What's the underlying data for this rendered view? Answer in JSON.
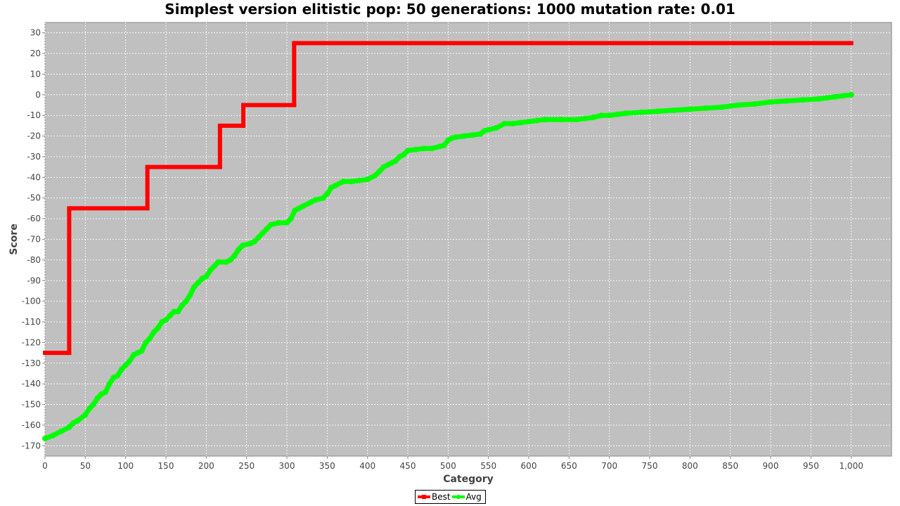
{
  "chart_data": {
    "type": "line",
    "title": "Simplest version elitistic pop: 50 generations: 1000 mutation rate: 0.01",
    "xlabel": "Category",
    "ylabel": "Score",
    "xlim": [
      0,
      1050
    ],
    "ylim": [
      -175,
      35
    ],
    "xticks": [
      0,
      50,
      100,
      150,
      200,
      250,
      300,
      350,
      400,
      450,
      500,
      550,
      600,
      650,
      700,
      750,
      800,
      850,
      900,
      950,
      1000
    ],
    "xtick_labels": [
      "0",
      "50",
      "100",
      "150",
      "200",
      "250",
      "300",
      "350",
      "400",
      "450",
      "500",
      "550",
      "600",
      "650",
      "700",
      "750",
      "800",
      "850",
      "900",
      "950",
      "1,000"
    ],
    "yticks": [
      -170,
      -160,
      -150,
      -140,
      -130,
      -120,
      -110,
      -100,
      -90,
      -80,
      -70,
      -60,
      -50,
      -40,
      -30,
      -20,
      -10,
      0,
      10,
      20,
      30
    ],
    "grid": true,
    "legend_position": "bottom-center",
    "series": [
      {
        "name": "Best",
        "color": "#ff0000",
        "step": true,
        "points": [
          [
            0,
            -125
          ],
          [
            30,
            -125
          ],
          [
            30,
            -55
          ],
          [
            127,
            -55
          ],
          [
            127,
            -35
          ],
          [
            217,
            -35
          ],
          [
            217,
            -15
          ],
          [
            246,
            -15
          ],
          [
            246,
            -5
          ],
          [
            309,
            -5
          ],
          [
            309,
            25
          ],
          [
            1000,
            25
          ]
        ]
      },
      {
        "name": "Avg",
        "color": "#00ff00",
        "points": [
          [
            0,
            -166.5
          ],
          [
            10,
            -165
          ],
          [
            20,
            -163
          ],
          [
            30,
            -161
          ],
          [
            35,
            -159
          ],
          [
            40,
            -158
          ],
          [
            50,
            -155
          ],
          [
            55,
            -152
          ],
          [
            60,
            -150
          ],
          [
            65,
            -147
          ],
          [
            70,
            -145
          ],
          [
            75,
            -144
          ],
          [
            80,
            -140
          ],
          [
            85,
            -137
          ],
          [
            90,
            -136
          ],
          [
            95,
            -133
          ],
          [
            100,
            -131
          ],
          [
            105,
            -129
          ],
          [
            110,
            -126
          ],
          [
            115,
            -125
          ],
          [
            120,
            -124
          ],
          [
            125,
            -120
          ],
          [
            130,
            -118
          ],
          [
            135,
            -115
          ],
          [
            140,
            -113
          ],
          [
            145,
            -110
          ],
          [
            150,
            -109
          ],
          [
            155,
            -107
          ],
          [
            160,
            -105
          ],
          [
            165,
            -105
          ],
          [
            170,
            -102
          ],
          [
            175,
            -100
          ],
          [
            180,
            -97
          ],
          [
            185,
            -93
          ],
          [
            190,
            -91
          ],
          [
            195,
            -89
          ],
          [
            200,
            -88
          ],
          [
            205,
            -85
          ],
          [
            210,
            -83
          ],
          [
            215,
            -81
          ],
          [
            225,
            -81
          ],
          [
            230,
            -80
          ],
          [
            235,
            -78
          ],
          [
            240,
            -75
          ],
          [
            245,
            -73
          ],
          [
            255,
            -72
          ],
          [
            260,
            -71
          ],
          [
            265,
            -69
          ],
          [
            270,
            -67
          ],
          [
            275,
            -65
          ],
          [
            280,
            -63
          ],
          [
            290,
            -62
          ],
          [
            300,
            -62
          ],
          [
            305,
            -60
          ],
          [
            310,
            -56
          ],
          [
            315,
            -55
          ],
          [
            320,
            -54
          ],
          [
            330,
            -52
          ],
          [
            335,
            -51
          ],
          [
            345,
            -50
          ],
          [
            350,
            -48
          ],
          [
            355,
            -45
          ],
          [
            360,
            -44
          ],
          [
            370,
            -42
          ],
          [
            380,
            -42
          ],
          [
            390,
            -41.5
          ],
          [
            400,
            -41
          ],
          [
            410,
            -39
          ],
          [
            415,
            -37
          ],
          [
            420,
            -35
          ],
          [
            425,
            -34
          ],
          [
            430,
            -33
          ],
          [
            435,
            -32
          ],
          [
            440,
            -30
          ],
          [
            445,
            -29
          ],
          [
            450,
            -27
          ],
          [
            460,
            -26.5
          ],
          [
            470,
            -26
          ],
          [
            480,
            -26
          ],
          [
            490,
            -25
          ],
          [
            495,
            -24.5
          ],
          [
            500,
            -22
          ],
          [
            505,
            -21
          ],
          [
            510,
            -20.5
          ],
          [
            520,
            -20
          ],
          [
            530,
            -19.5
          ],
          [
            540,
            -19
          ],
          [
            545,
            -17.5
          ],
          [
            550,
            -17
          ],
          [
            560,
            -16
          ],
          [
            570,
            -14
          ],
          [
            580,
            -14
          ],
          [
            590,
            -13.5
          ],
          [
            600,
            -13
          ],
          [
            610,
            -12.5
          ],
          [
            620,
            -12
          ],
          [
            640,
            -12
          ],
          [
            660,
            -12
          ],
          [
            670,
            -11.5
          ],
          [
            680,
            -11
          ],
          [
            690,
            -10
          ],
          [
            700,
            -10
          ],
          [
            710,
            -9.5
          ],
          [
            720,
            -9
          ],
          [
            740,
            -8.5
          ],
          [
            760,
            -8
          ],
          [
            780,
            -7.5
          ],
          [
            800,
            -7
          ],
          [
            820,
            -6.5
          ],
          [
            840,
            -6
          ],
          [
            860,
            -5
          ],
          [
            880,
            -4.5
          ],
          [
            900,
            -3.5
          ],
          [
            920,
            -3
          ],
          [
            940,
            -2.5
          ],
          [
            960,
            -2
          ],
          [
            970,
            -1.5
          ],
          [
            980,
            -1
          ],
          [
            990,
            -0.5
          ],
          [
            1000,
            0
          ]
        ]
      }
    ]
  }
}
